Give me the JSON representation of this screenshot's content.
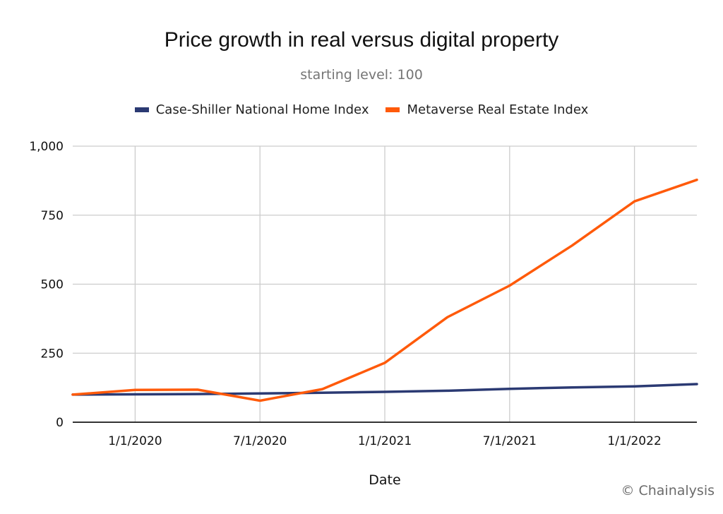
{
  "chart_data": {
    "type": "line",
    "title": "Price growth in real versus digital property",
    "subtitle": "starting level: 100",
    "xlabel": "Date",
    "ylabel": "",
    "ylim": [
      0,
      1000
    ],
    "yticks": [
      0,
      250,
      500,
      750,
      1000
    ],
    "ytick_labels": [
      "0",
      "250",
      "500",
      "750",
      "1,000"
    ],
    "xticks": [
      "1/1/2020",
      "7/1/2020",
      "1/1/2021",
      "7/1/2021",
      "1/1/2022"
    ],
    "grid": true,
    "legend_position": "top-center",
    "x": [
      "10/1/2019",
      "1/1/2020",
      "4/1/2020",
      "7/1/2020",
      "10/1/2020",
      "1/1/2021",
      "4/1/2021",
      "7/1/2021",
      "10/1/2021",
      "1/1/2022",
      "4/1/2022"
    ],
    "series": [
      {
        "name": "Case-Shiller National Home Index",
        "color": "#2b3a73",
        "values": [
          100,
          101,
          102,
          104,
          107,
          110,
          114,
          121,
          126,
          130,
          138
        ]
      },
      {
        "name": "Metaverse Real Estate Index",
        "color": "#ff5a0a",
        "values": [
          100,
          117,
          118,
          78,
          120,
          215,
          380,
          495,
          640,
          800,
          878
        ]
      }
    ]
  },
  "credit": "© Chainalysis"
}
